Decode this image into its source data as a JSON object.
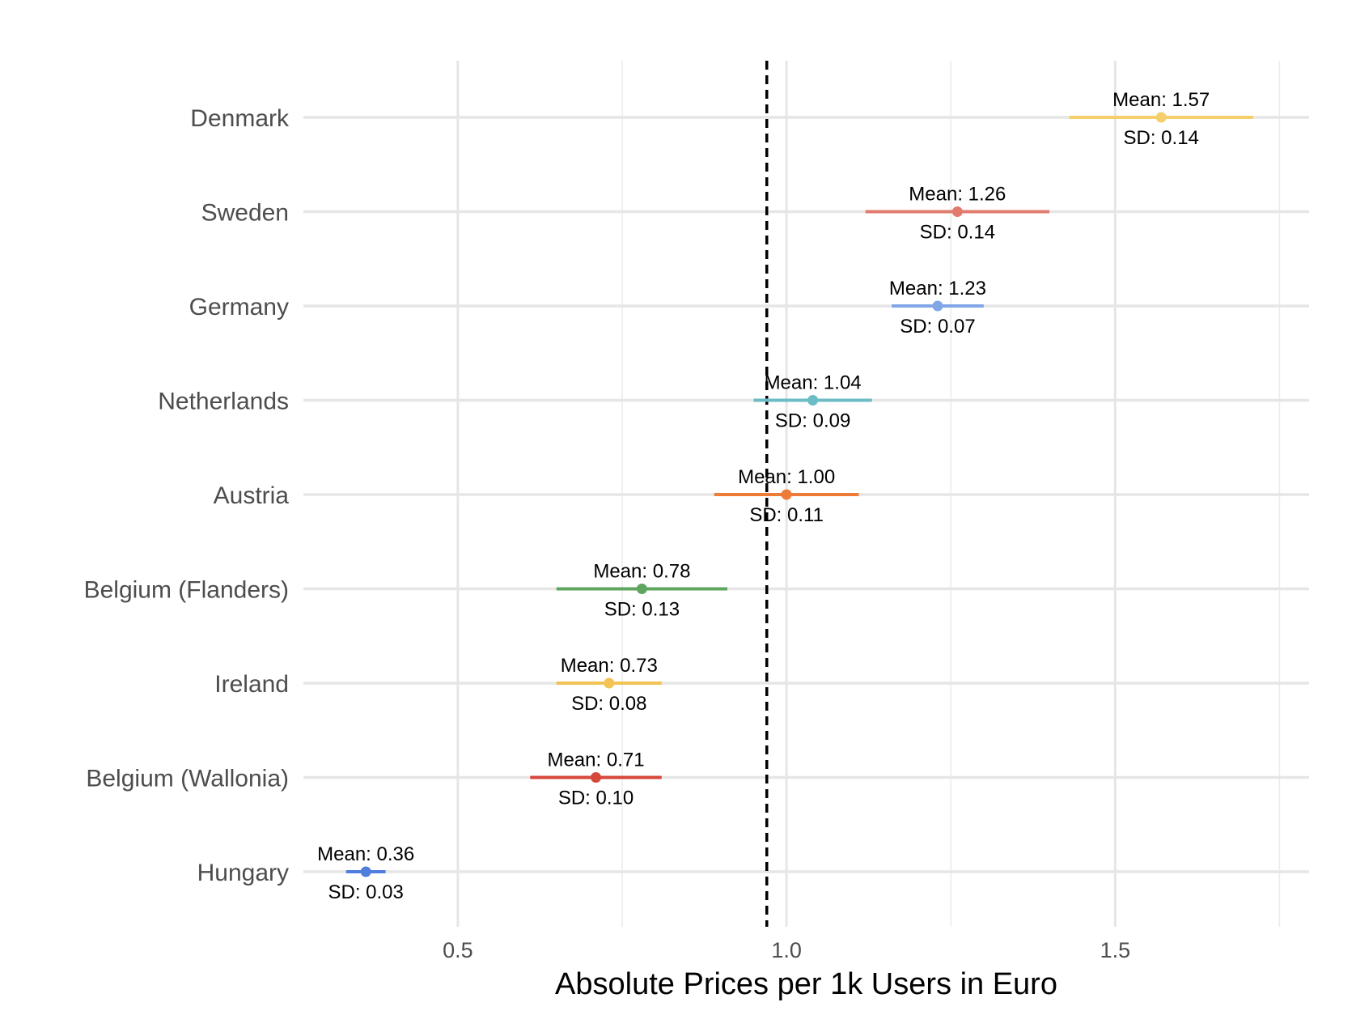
{
  "chart_data": {
    "type": "scatter",
    "xlabel": "Absolute Prices per 1k Users in Euro",
    "ylabel": "",
    "title": "",
    "xlim": [
      0.265,
      1.795
    ],
    "x_ticks": [
      0.5,
      1.0,
      1.5
    ],
    "x_tick_labels": [
      "0.5",
      "1.0",
      "1.5"
    ],
    "x_minor_ticks": [
      0.75,
      1.25,
      1.75
    ],
    "reference_line": {
      "x": 0.97,
      "style": "dashed",
      "color": "#000000"
    },
    "grid": true,
    "categories": [
      "Denmark",
      "Sweden",
      "Germany",
      "Netherlands",
      "Austria",
      "Belgium (Flanders)",
      "Ireland",
      "Belgium (Wallonia)",
      "Hungary"
    ],
    "series": [
      {
        "country": "Denmark",
        "mean": 1.57,
        "sd": 0.14,
        "mean_label": "Mean: 1.57",
        "sd_label": "SD: 0.14",
        "color": "#F5CF6B"
      },
      {
        "country": "Sweden",
        "mean": 1.26,
        "sd": 0.14,
        "mean_label": "Mean: 1.26",
        "sd_label": "SD: 0.14",
        "color": "#E07B6E"
      },
      {
        "country": "Germany",
        "mean": 1.23,
        "sd": 0.07,
        "mean_label": "Mean: 1.23",
        "sd_label": "SD: 0.07",
        "color": "#80A6E8"
      },
      {
        "country": "Netherlands",
        "mean": 1.04,
        "sd": 0.09,
        "mean_label": "Mean: 1.04",
        "sd_label": "SD: 0.09",
        "color": "#6BBCC4"
      },
      {
        "country": "Austria",
        "mean": 1.0,
        "sd": 0.11,
        "mean_label": "Mean: 1.00",
        "sd_label": "SD: 0.11",
        "color": "#EE7B38"
      },
      {
        "country": "Belgium (Flanders)",
        "mean": 0.78,
        "sd": 0.13,
        "mean_label": "Mean: 0.78",
        "sd_label": "SD: 0.13",
        "color": "#5FA55F"
      },
      {
        "country": "Ireland",
        "mean": 0.73,
        "sd": 0.08,
        "mean_label": "Mean: 0.73",
        "sd_label": "SD: 0.08",
        "color": "#F1C453"
      },
      {
        "country": "Belgium (Wallonia)",
        "mean": 0.71,
        "sd": 0.1,
        "mean_label": "Mean: 0.71",
        "sd_label": "SD: 0.10",
        "color": "#D7473B"
      },
      {
        "country": "Hungary",
        "mean": 0.36,
        "sd": 0.03,
        "mean_label": "Mean: 0.36",
        "sd_label": "SD: 0.03",
        "color": "#4F7EDD"
      }
    ]
  }
}
